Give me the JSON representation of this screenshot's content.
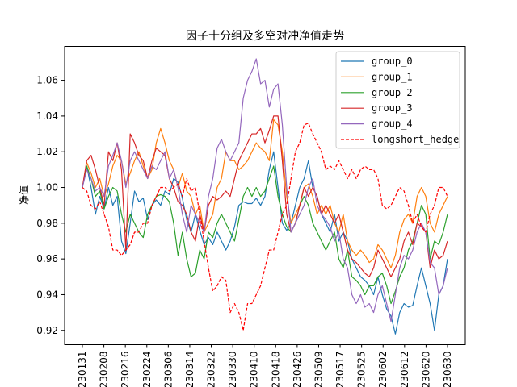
{
  "chart_data": {
    "type": "line",
    "title": "因子十分组及多空对冲净值走势",
    "xlabel": "",
    "ylabel": "净值",
    "ylim": [
      0.912,
      1.079
    ],
    "yticks": [
      0.92,
      0.94,
      0.96,
      0.98,
      1.0,
      1.02,
      1.04,
      1.06
    ],
    "ytick_labels": [
      "0.92",
      "0.94",
      "0.96",
      "0.98",
      "1.00",
      "1.02",
      "1.04",
      "1.06"
    ],
    "xtick_labels": [
      "230131",
      "230208",
      "230216",
      "230224",
      "230306",
      "230314",
      "230322",
      "230330",
      "230410",
      "230418",
      "230426",
      "230509",
      "230517",
      "230525",
      "230602",
      "230612",
      "230620",
      "230630"
    ],
    "grid": false,
    "legend_position": "upper-right",
    "series": [
      {
        "name": "group_0",
        "color": "#1f77b4",
        "dash": "solid",
        "values": [
          1.0,
          1.012,
          1.0,
          0.985,
          0.995,
          0.988,
          1.0,
          0.99,
          0.995,
          0.97,
          0.963,
          0.98,
          0.998,
          0.992,
          0.994,
          0.982,
          0.99,
          0.993,
          0.99,
          0.998,
          0.996,
          1.005,
          1.003,
          0.994,
          0.982,
          0.975,
          0.985,
          0.976,
          0.968,
          0.972,
          0.968,
          0.975,
          0.97,
          0.965,
          0.97,
          0.978,
          0.99,
          0.992,
          0.991,
          0.991,
          0.994,
          0.99,
          0.995,
          1.01,
          1.02,
          1.0,
          0.98,
          0.976,
          0.98,
          0.99,
          1.0,
          1.005,
          1.015,
          1.0,
          0.995,
          0.985,
          0.98,
          0.975,
          0.985,
          0.97,
          0.975,
          0.97,
          0.96,
          0.955,
          0.95,
          0.948,
          0.945,
          0.94,
          0.95,
          0.94,
          0.932,
          0.928,
          0.918,
          0.93,
          0.935,
          0.933,
          0.934,
          0.945,
          0.955,
          0.945,
          0.935,
          0.92,
          0.94,
          0.945,
          0.96
        ]
      },
      {
        "name": "group_1",
        "color": "#ff7f0e",
        "dash": "solid",
        "values": [
          1.0,
          1.014,
          1.008,
          1.0,
          1.005,
          0.995,
          1.002,
          1.012,
          1.018,
          1.015,
          1.002,
          1.008,
          1.015,
          1.02,
          1.012,
          1.005,
          1.01,
          1.025,
          1.033,
          1.025,
          1.015,
          1.01,
          1.0,
          1.008,
          0.998,
          0.995,
          0.985,
          0.99,
          0.975,
          0.98,
          0.985,
          1.0,
          1.005,
          1.02,
          1.015,
          1.015,
          1.01,
          1.012,
          1.015,
          1.02,
          1.025,
          1.022,
          1.02,
          1.015,
          1.038,
          1.035,
          1.02,
          0.995,
          0.98,
          0.985,
          0.99,
          1.0,
          1.002,
          0.995,
          0.985,
          0.99,
          0.985,
          0.99,
          0.98,
          0.975,
          0.985,
          0.97,
          0.965,
          0.962,
          0.965,
          0.962,
          0.958,
          0.96,
          0.968,
          0.965,
          0.96,
          0.955,
          0.962,
          0.975,
          0.982,
          0.985,
          0.98,
          0.995,
          1.0,
          0.995,
          0.98,
          0.975,
          0.985,
          0.99,
          0.995
        ]
      },
      {
        "name": "group_2",
        "color": "#2ca02c",
        "dash": "solid",
        "values": [
          1.0,
          1.012,
          1.005,
          0.995,
          0.998,
          0.988,
          0.995,
          1.0,
          0.998,
          0.985,
          0.975,
          0.985,
          0.98,
          0.975,
          0.972,
          0.985,
          0.99,
          0.995,
          0.996,
          0.995,
          0.992,
          0.98,
          0.962,
          0.975,
          0.96,
          0.95,
          0.952,
          0.965,
          0.96,
          0.975,
          0.972,
          0.98,
          0.985,
          0.98,
          0.975,
          0.97,
          0.982,
          0.995,
          1.0,
          0.995,
          1.0,
          0.995,
          0.998,
          1.005,
          1.012,
          0.995,
          0.985,
          0.978,
          0.975,
          0.98,
          0.99,
          0.995,
          0.99,
          0.98,
          0.975,
          0.97,
          0.965,
          0.97,
          0.975,
          0.96,
          0.955,
          0.965,
          0.95,
          0.948,
          0.945,
          0.94,
          0.945,
          0.945,
          0.95,
          0.952,
          0.945,
          0.935,
          0.942,
          0.95,
          0.955,
          0.965,
          0.97,
          0.98,
          0.99,
          0.985,
          0.96,
          0.97,
          0.968,
          0.975,
          0.985
        ]
      },
      {
        "name": "group_3",
        "color": "#d62728",
        "dash": "solid",
        "values": [
          1.0,
          1.015,
          1.018,
          1.01,
          1.0,
          0.99,
          1.02,
          1.015,
          1.025,
          1.01,
          0.965,
          1.03,
          1.025,
          1.018,
          1.015,
          1.005,
          1.015,
          1.022,
          1.02,
          1.018,
          1.005,
          1.0,
          0.992,
          0.99,
          0.985,
          0.975,
          0.97,
          0.985,
          0.975,
          0.99,
          0.995,
          0.993,
          0.995,
          0.998,
          0.995,
          1.005,
          1.015,
          1.02,
          1.025,
          1.03,
          1.03,
          1.033,
          1.025,
          1.032,
          1.04,
          1.04,
          1.015,
          0.985,
          0.975,
          0.98,
          0.99,
          1.0,
          0.995,
          1.0,
          0.995,
          0.985,
          0.99,
          0.985,
          0.98,
          0.985,
          0.975,
          0.965,
          0.96,
          0.958,
          0.955,
          0.952,
          0.95,
          0.955,
          0.965,
          0.96,
          0.955,
          0.95,
          0.955,
          0.96,
          0.97,
          0.975,
          0.968,
          0.98,
          0.978,
          0.975,
          0.955,
          0.965,
          0.96,
          0.962,
          0.97
        ]
      },
      {
        "name": "group_4",
        "color": "#9467bd",
        "dash": "solid",
        "values": [
          1.0,
          1.01,
          1.005,
          0.998,
          1.0,
          0.995,
          1.012,
          1.018,
          1.025,
          1.015,
          1.0,
          1.015,
          1.02,
          1.015,
          1.01,
          1.005,
          1.012,
          1.01,
          1.015,
          1.02,
          1.005,
          1.01,
          1.0,
          0.985,
          0.975,
          0.99,
          0.985,
          0.98,
          0.975,
          0.995,
          1.005,
          1.022,
          1.027,
          1.02,
          1.015,
          1.02,
          1.025,
          1.05,
          1.06,
          1.065,
          1.072,
          1.058,
          1.06,
          1.045,
          1.055,
          1.058,
          1.035,
          1.0,
          0.975,
          0.98,
          0.985,
          0.99,
          1.0,
          1.005,
          0.99,
          0.985,
          0.982,
          0.978,
          0.97,
          0.975,
          0.96,
          0.955,
          0.94,
          0.935,
          0.94,
          0.933,
          0.935,
          0.93,
          0.94,
          0.945,
          0.935,
          0.925,
          0.94,
          0.955,
          0.962,
          0.96,
          0.965,
          0.975,
          0.98,
          0.975,
          0.958,
          0.955,
          0.94,
          0.945,
          0.955
        ]
      },
      {
        "name": "longshort_hedge",
        "color": "#ff0000",
        "dash": "dashed",
        "values": [
          1.0,
          0.998,
          0.99,
          0.988,
          0.992,
          0.985,
          0.978,
          0.965,
          0.965,
          0.962,
          0.965,
          0.968,
          0.975,
          0.975,
          0.98,
          0.98,
          0.99,
          0.995,
          1.0,
          1.0,
          0.998,
          1.0,
          1.002,
          0.995,
          1.005,
          0.998,
          1.0,
          0.985,
          0.97,
          0.955,
          0.942,
          0.945,
          0.95,
          0.948,
          0.93,
          0.935,
          0.93,
          0.92,
          0.935,
          0.935,
          0.94,
          0.945,
          0.955,
          0.965,
          0.965,
          0.975,
          0.985,
          0.99,
          1.005,
          1.02,
          1.025,
          1.035,
          1.036,
          1.03,
          1.025,
          1.02,
          1.01,
          1.012,
          1.01,
          1.015,
          1.01,
          1.005,
          1.01,
          1.005,
          1.01,
          1.012,
          1.01,
          1.01,
          1.005,
          0.99,
          0.988,
          0.99,
          0.995,
          1.0,
          0.998,
          0.99,
          0.98,
          0.985,
          0.978,
          0.975,
          0.985,
          0.99,
          1.0,
          1.0,
          0.995
        ]
      }
    ]
  }
}
